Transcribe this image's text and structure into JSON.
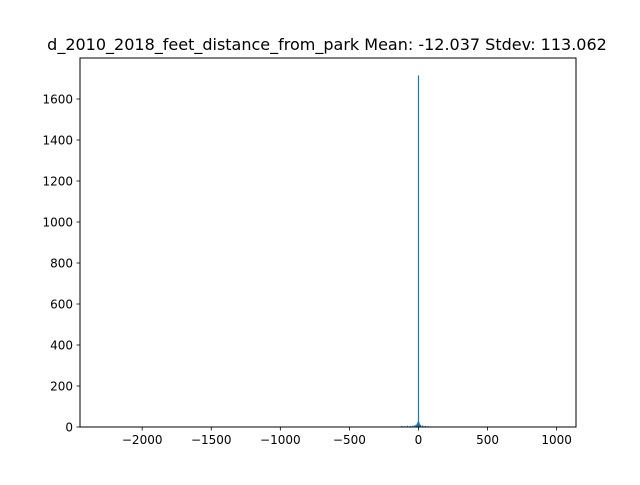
{
  "chart_data": {
    "type": "bar",
    "title": "d_2010_2018_feet_distance_from_park  Mean: -12.037  Stdev: 113.062",
    "xlabel": "",
    "ylabel": "",
    "xlim": [
      -2450,
      1140
    ],
    "ylim": [
      0,
      1800
    ],
    "x_ticks": [
      -2000,
      -1500,
      -1000,
      -500,
      0,
      500,
      1000
    ],
    "x_tick_labels": [
      "−2000",
      "−1500",
      "−1000",
      "−500",
      "0",
      "500",
      "1000"
    ],
    "y_ticks": [
      0,
      200,
      400,
      600,
      800,
      1000,
      1200,
      1400,
      1600
    ],
    "y_tick_labels": [
      "0",
      "200",
      "400",
      "600",
      "800",
      "1000",
      "1200",
      "1400",
      "1600"
    ],
    "grid": false,
    "bar_color": "#1f77b4",
    "bins": [
      {
        "x": -120,
        "count": 5
      },
      {
        "x": -100,
        "count": 4
      },
      {
        "x": -80,
        "count": 6
      },
      {
        "x": -60,
        "count": 5
      },
      {
        "x": -40,
        "count": 7
      },
      {
        "x": -25,
        "count": 10
      },
      {
        "x": -15,
        "count": 12
      },
      {
        "x": -8,
        "count": 18
      },
      {
        "x": -4,
        "count": 25
      },
      {
        "x": 0,
        "count": 1715
      },
      {
        "x": 4,
        "count": 22
      },
      {
        "x": 8,
        "count": 15
      },
      {
        "x": 15,
        "count": 10
      },
      {
        "x": 30,
        "count": 7
      },
      {
        "x": 50,
        "count": 5
      },
      {
        "x": 70,
        "count": 4
      }
    ]
  }
}
